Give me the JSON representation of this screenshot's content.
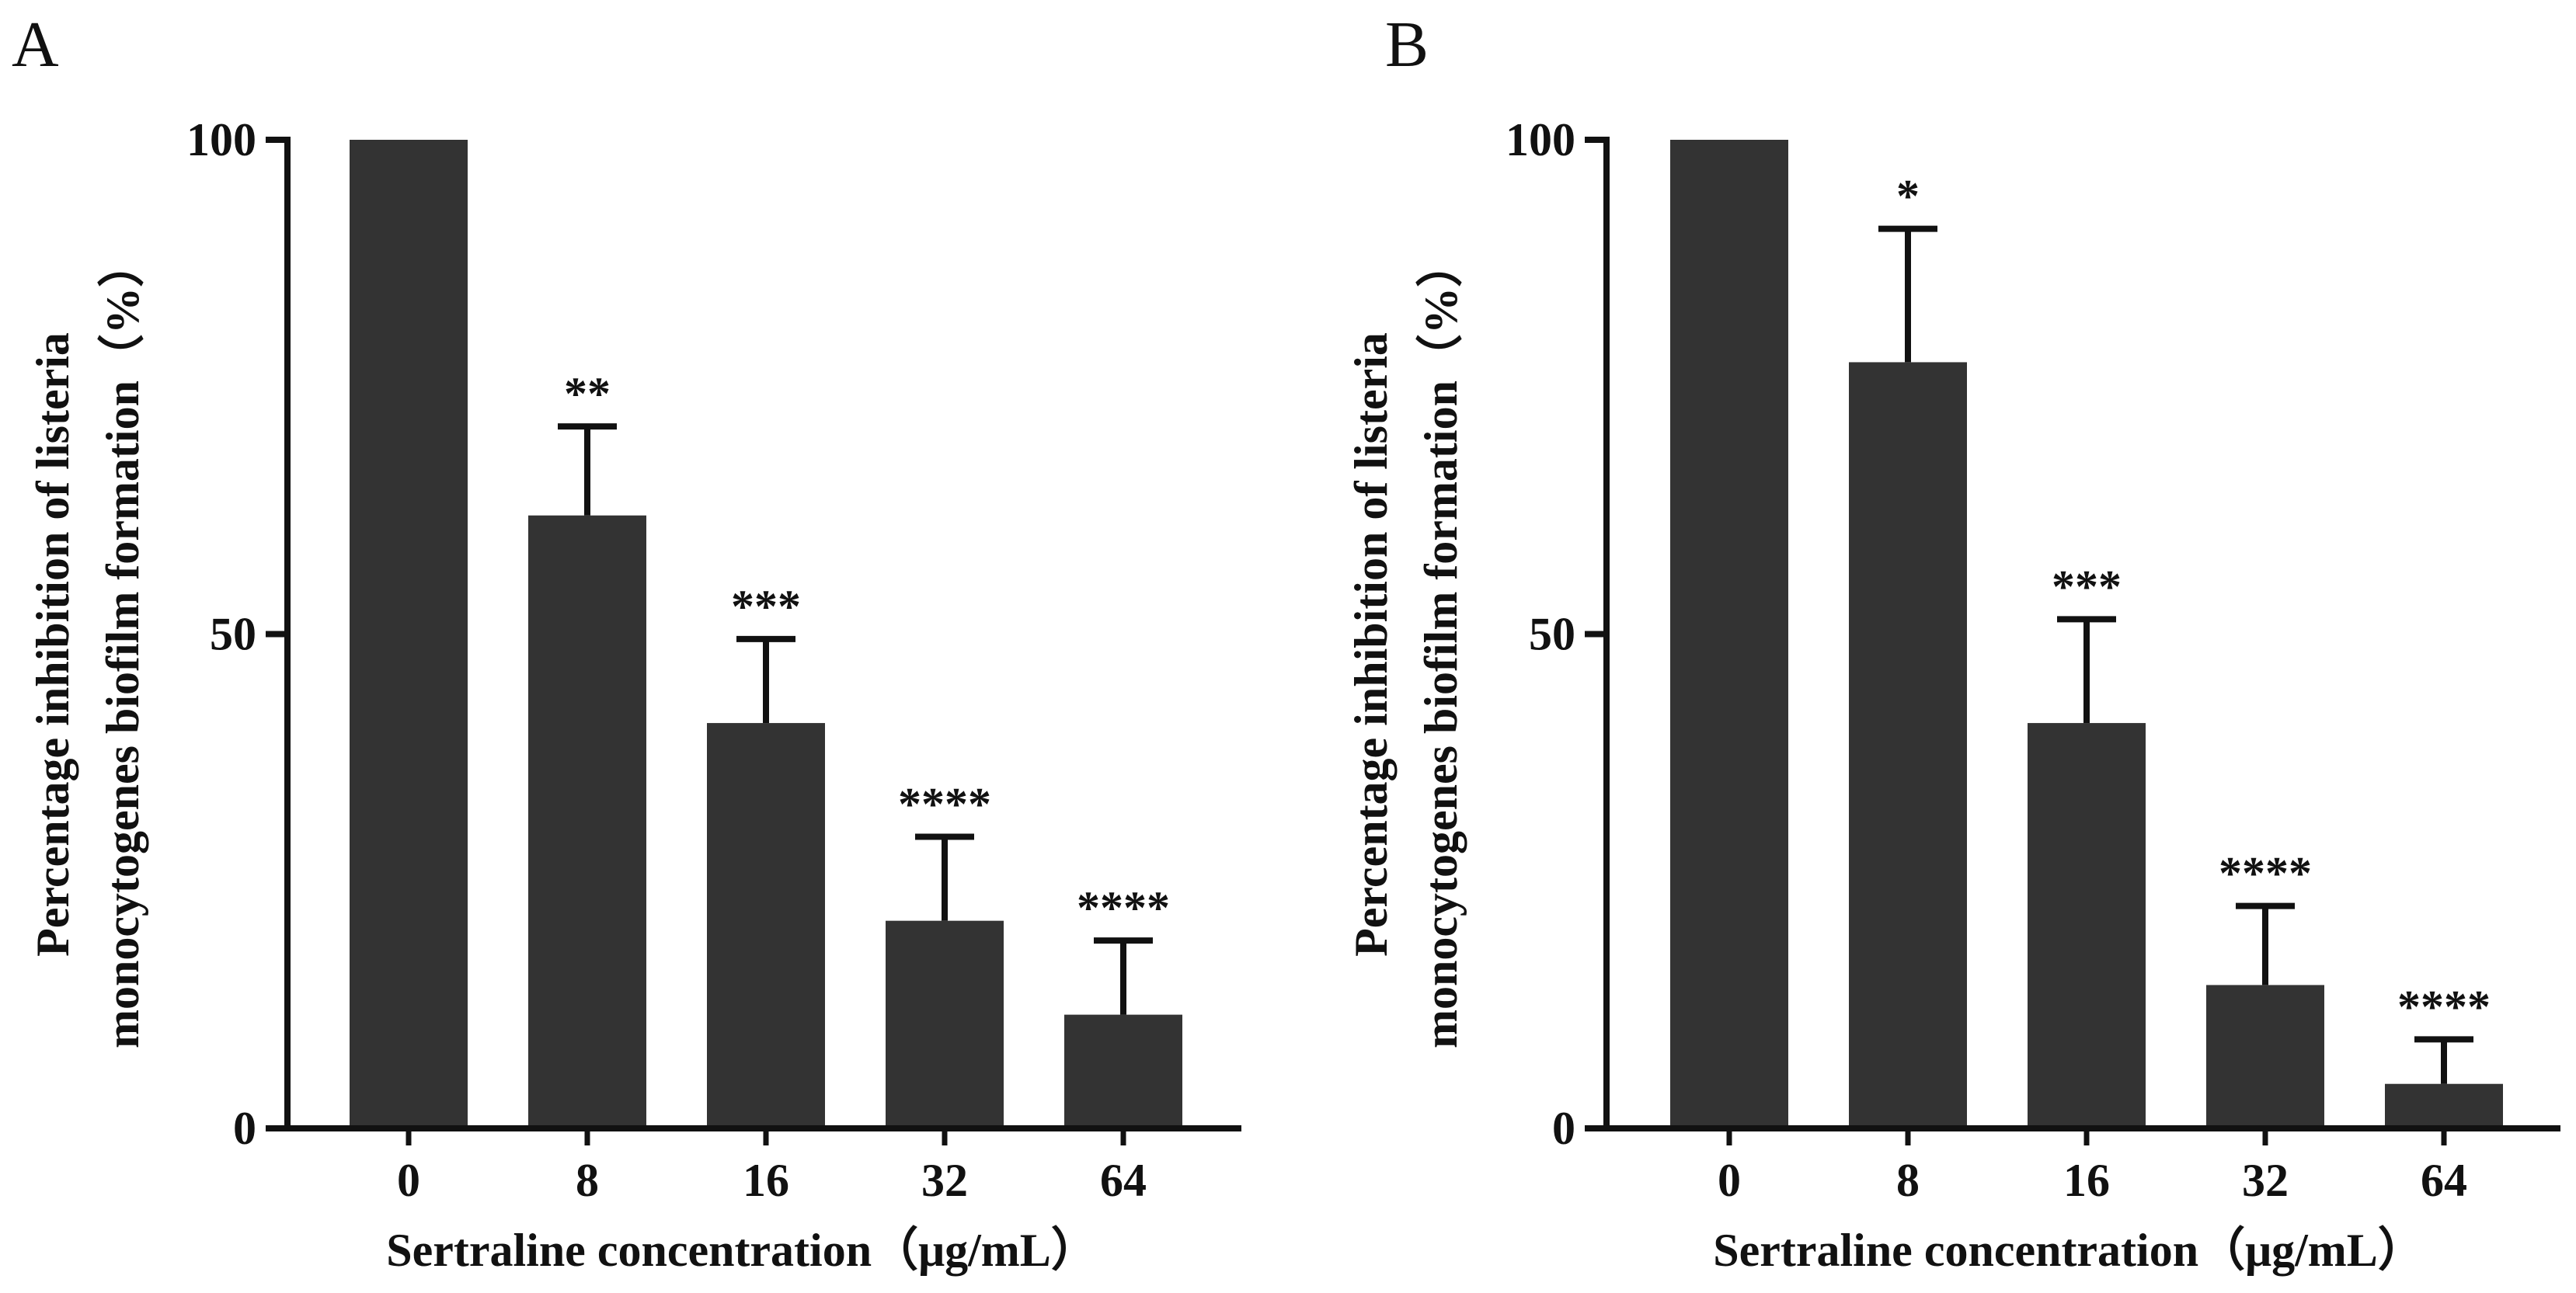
{
  "chart_data": [
    {
      "panel": "A",
      "type": "bar",
      "categories": [
        "0",
        "8",
        "16",
        "32",
        "64"
      ],
      "values": [
        100,
        62,
        41,
        21,
        11.5
      ],
      "errors": [
        0,
        9,
        8.5,
        8.5,
        7.5
      ],
      "significance": [
        "",
        "**",
        "***",
        "****",
        "****"
      ],
      "xlabel": "Sertraline concentration（μg/mL）",
      "ylabel_lines": [
        "Percentage inhibition of listeria",
        "monocytogenes biofilm formation（%）"
      ],
      "yticks": [
        "0",
        "50",
        "100"
      ],
      "ylim": [
        0,
        100
      ],
      "bar_color": "#333333"
    },
    {
      "panel": "B",
      "type": "bar",
      "categories": [
        "0",
        "8",
        "16",
        "32",
        "64"
      ],
      "values": [
        100,
        77.5,
        41,
        14.5,
        4.5
      ],
      "errors": [
        0,
        13.5,
        10.5,
        8,
        4.5
      ],
      "significance": [
        "",
        "*",
        "***",
        "****",
        "****"
      ],
      "xlabel": "Sertraline concentration（μg/mL）",
      "ylabel_lines": [
        "Percentage inhibition of listeria",
        "monocytogenes biofilm formation（%）"
      ],
      "yticks": [
        "0",
        "50",
        "100"
      ],
      "ylim": [
        0,
        100
      ],
      "bar_color": "#333333"
    }
  ]
}
